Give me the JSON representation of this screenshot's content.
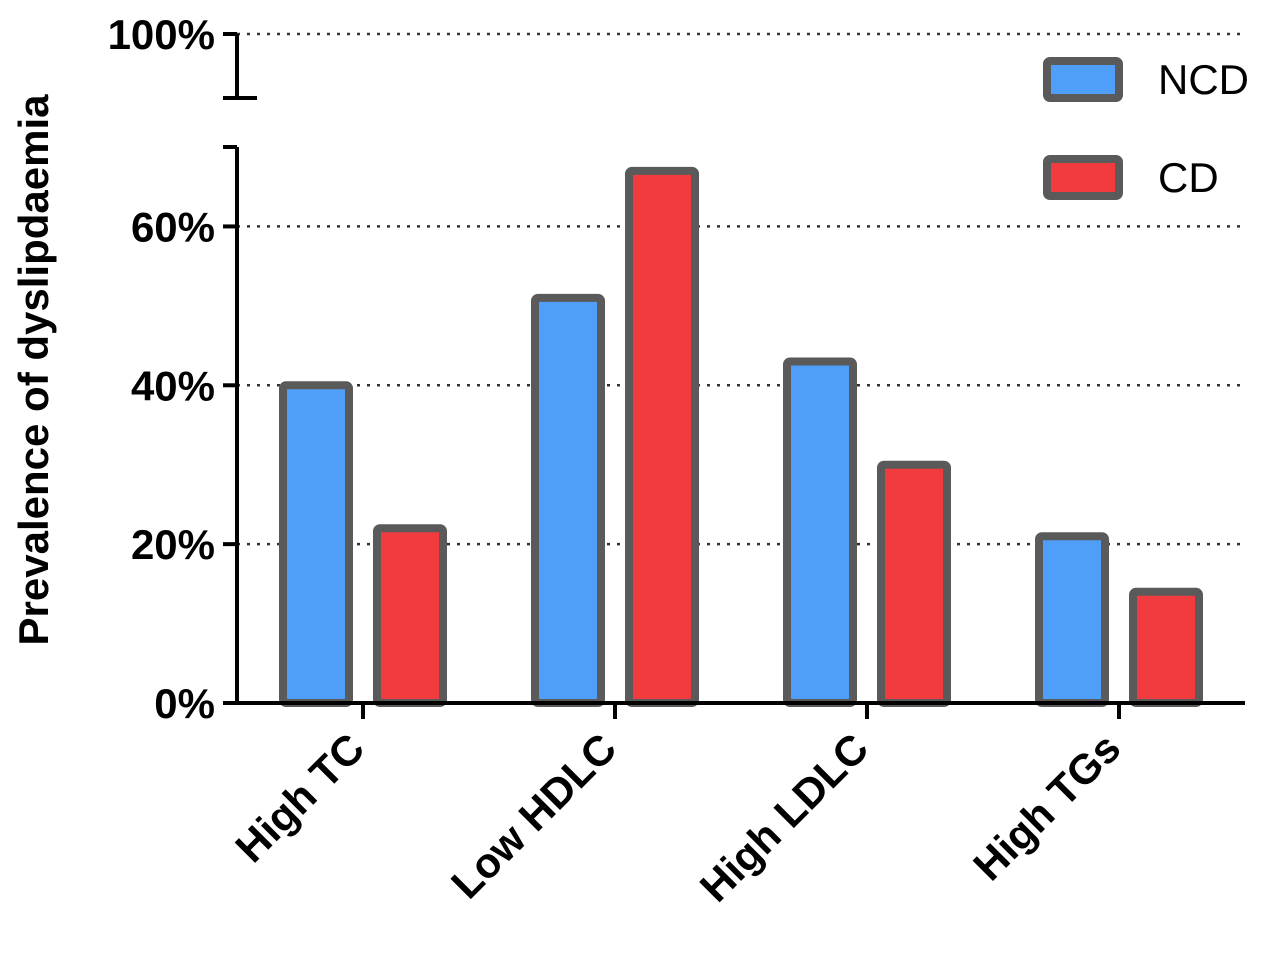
{
  "chart_data": {
    "type": "bar",
    "ylabel": "Prevalence of dyslipdaemia",
    "categories": [
      "High TC",
      "Low HDLC",
      "High LDLC",
      "High TGs"
    ],
    "series": [
      {
        "name": "NCD",
        "color": "#4f9ef8",
        "values": [
          40,
          51,
          43,
          21
        ]
      },
      {
        "name": "CD",
        "color": "#f23b3f",
        "values": [
          22,
          67,
          30,
          14
        ]
      }
    ],
    "ylim": [
      0,
      100
    ],
    "y_axis_break": [
      70,
      92
    ],
    "yticks": [
      0,
      20,
      40,
      60,
      100
    ],
    "ytick_labels": [
      "0%",
      "20%",
      "40%",
      "60%",
      "100%"
    ],
    "grid": "horizontal dotted",
    "legend_position": "top-right",
    "bar_outline_color": "#5a5a5a"
  }
}
